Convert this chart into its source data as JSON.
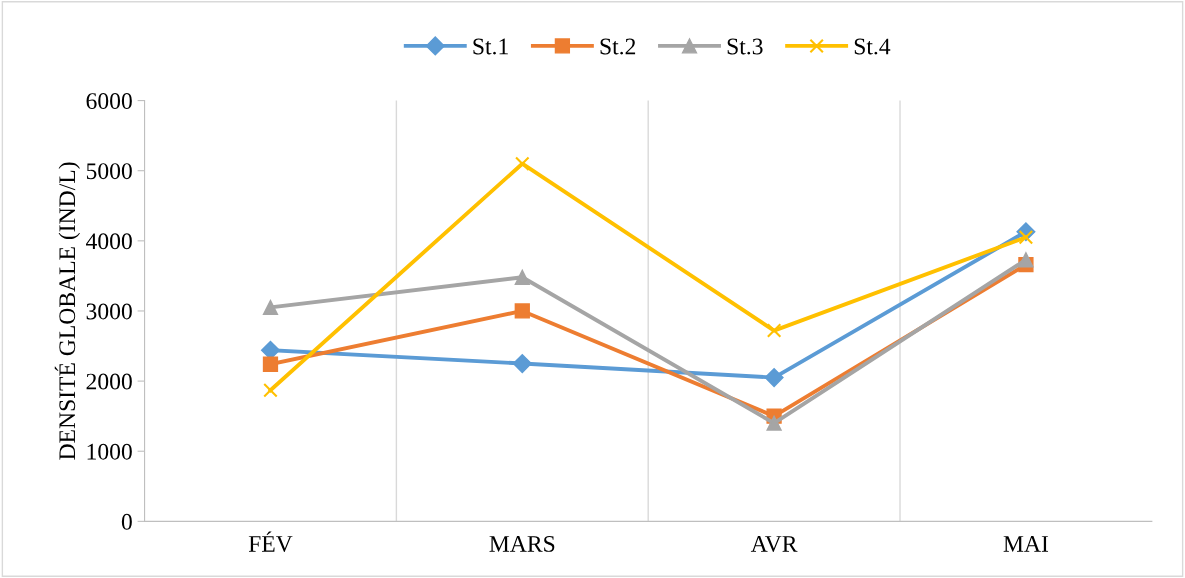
{
  "chart_data": {
    "type": "line",
    "ylabel": "DENSITÉ GLOBALE (IND/L)",
    "categories": [
      "FÉV",
      "MARS",
      "AVR",
      "MAI"
    ],
    "series": [
      {
        "name": "St.1",
        "color": "#5b9bd5",
        "marker": "diamond",
        "values": [
          2440,
          2250,
          2050,
          4130
        ]
      },
      {
        "name": "St.2",
        "color": "#ed7d31",
        "marker": "square",
        "values": [
          2240,
          3000,
          1500,
          3660
        ]
      },
      {
        "name": "St.3",
        "color": "#a5a5a5",
        "marker": "triangle",
        "values": [
          3050,
          3480,
          1400,
          3730
        ]
      },
      {
        "name": "St.4",
        "color": "#ffc000",
        "marker": "cross",
        "values": [
          1870,
          5100,
          2720,
          4050
        ]
      }
    ],
    "ylim": [
      0,
      6000
    ],
    "yticks": [
      0,
      1000,
      2000,
      3000,
      4000,
      5000,
      6000
    ],
    "grid": "x",
    "legend": "top"
  }
}
